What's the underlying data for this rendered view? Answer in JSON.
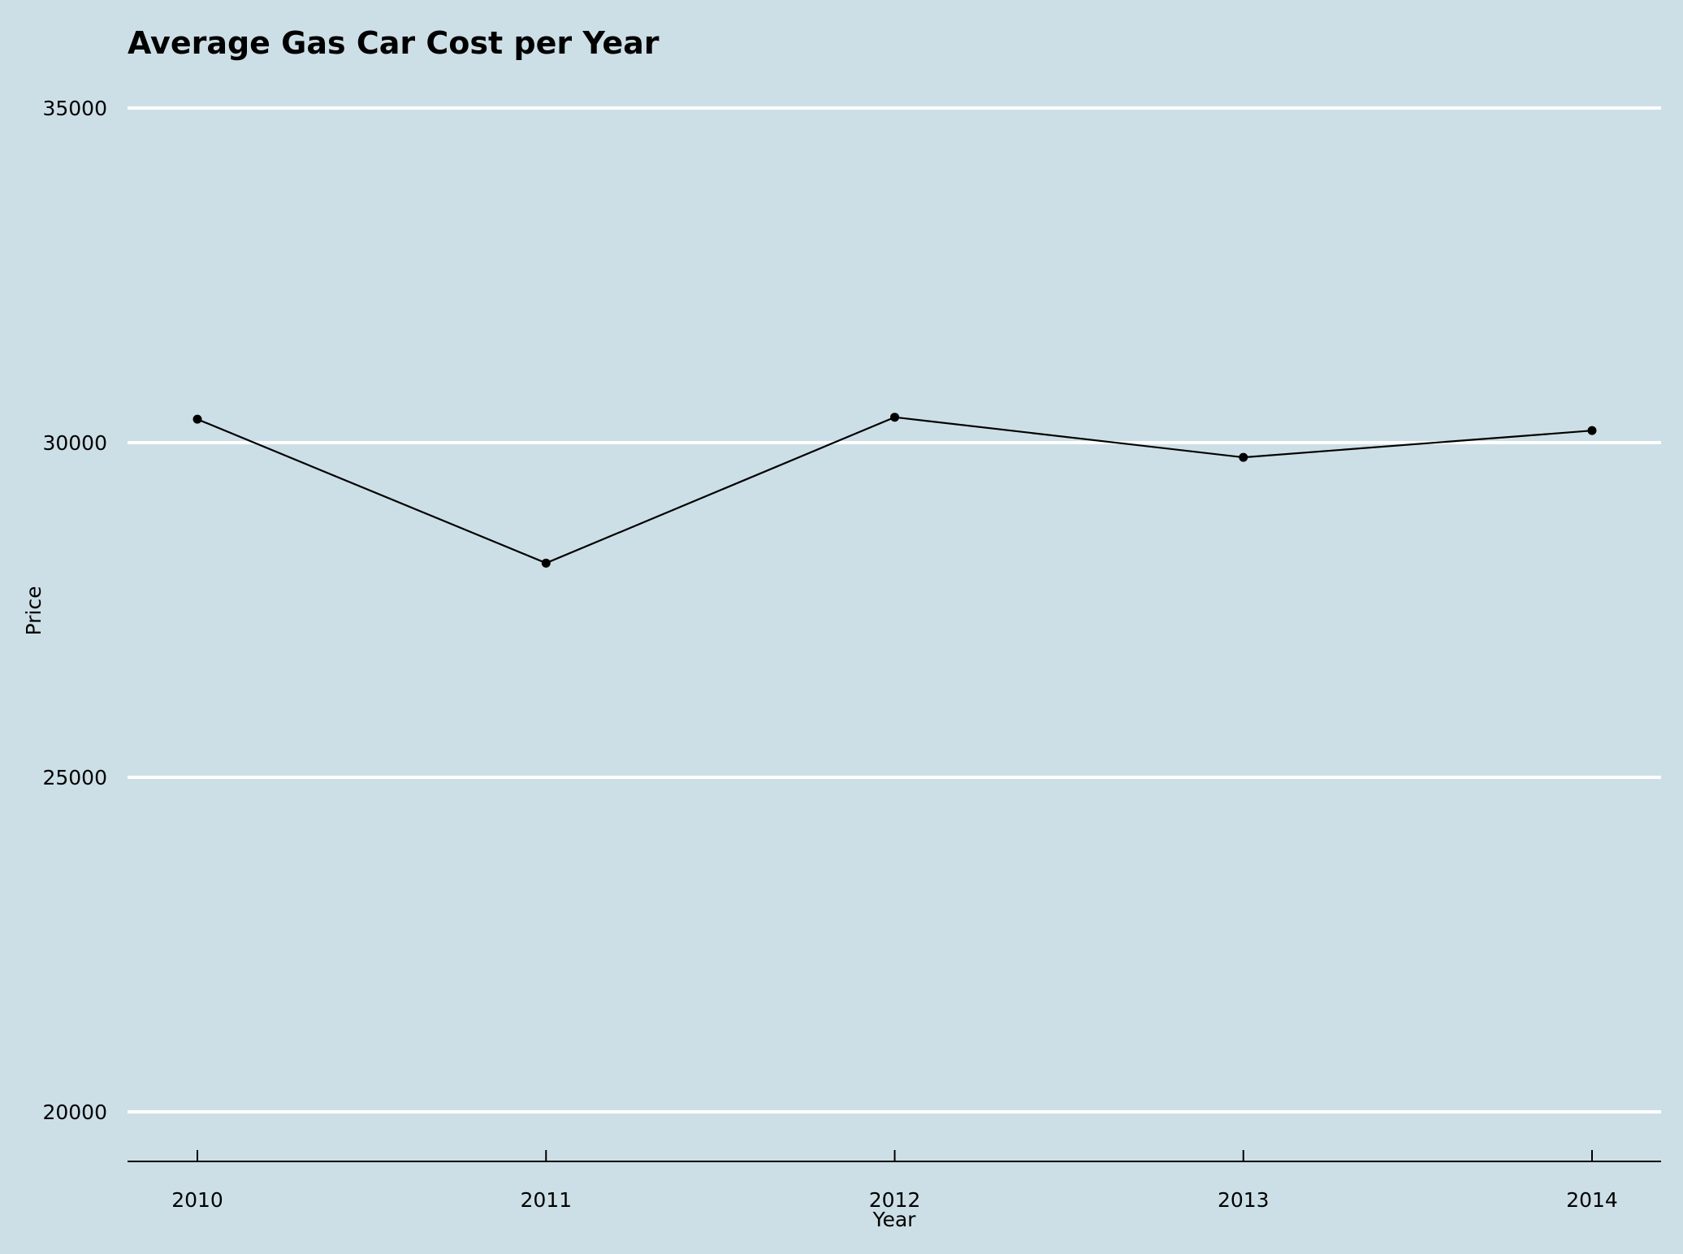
{
  "chart_data": {
    "type": "line",
    "title": "Average Gas Car Cost per Year",
    "xlabel": "Year",
    "ylabel": "Price",
    "categories": [
      "2010",
      "2011",
      "2012",
      "2013",
      "2014"
    ],
    "series": [
      {
        "values": [
          30350,
          28200,
          30380,
          29780,
          30180
        ],
        "color": "#000000"
      }
    ],
    "y_ticks": [
      "20000",
      "25000",
      "30000",
      "35000"
    ],
    "ylim": [
      19250,
      35000
    ],
    "grid": true,
    "grid_axis": "y",
    "legend": "none",
    "colors": {
      "background": "#cddfe6",
      "grid": "#ffffff",
      "line": "#000000",
      "axis": "#000000"
    }
  }
}
